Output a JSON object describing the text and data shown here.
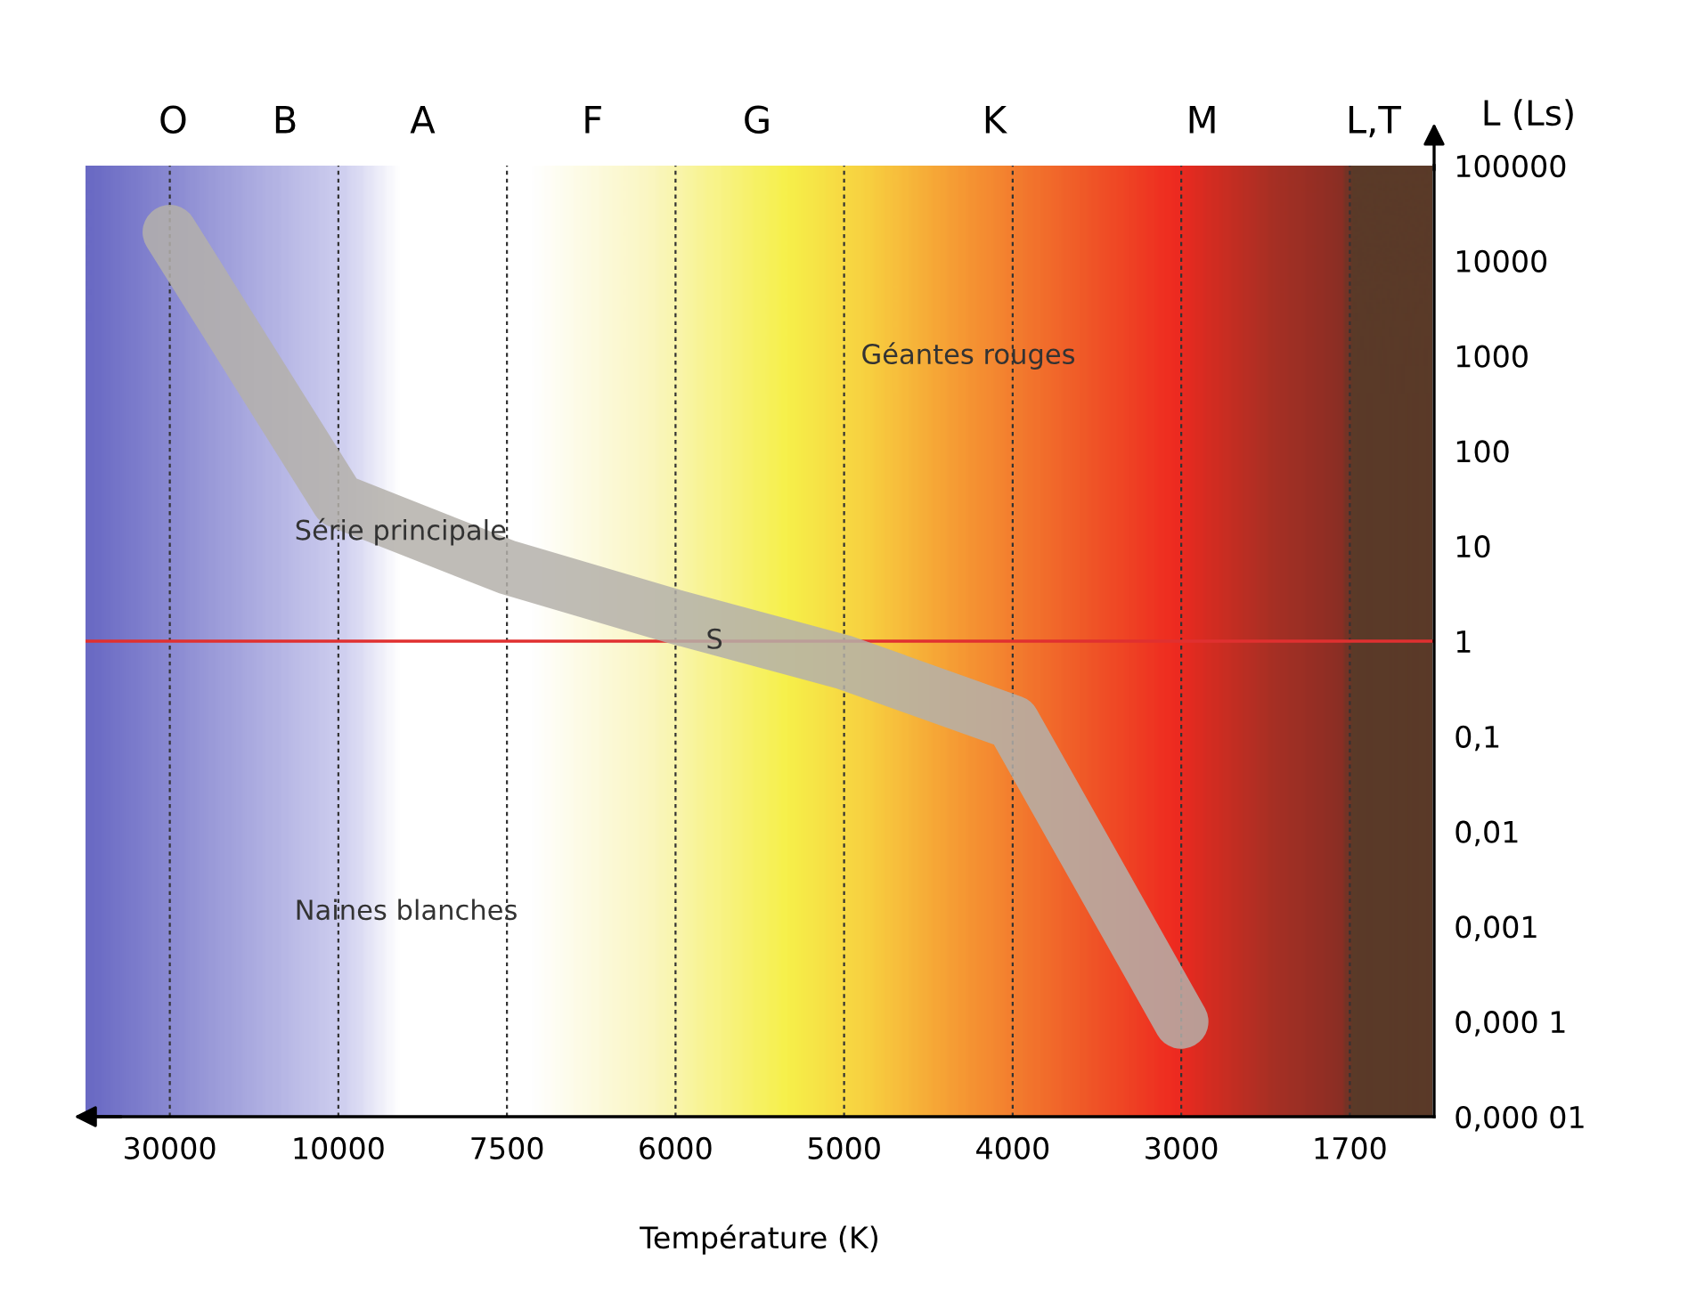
{
  "chart_data": {
    "type": "line",
    "xlabel": "Température (K)",
    "ylabel": "L (Ls)",
    "categories": [
      "30000",
      "10000",
      "7500",
      "6000",
      "5000",
      "4000",
      "3000",
      "1700"
    ],
    "log": "y",
    "ylim": [
      1e-05,
      100000
    ],
    "yticks": [
      {
        "value": 100000,
        "label": "100000"
      },
      {
        "value": 10000,
        "label": "10000"
      },
      {
        "value": 1000,
        "label": "1000"
      },
      {
        "value": 100,
        "label": "100"
      },
      {
        "value": 10,
        "label": "10"
      },
      {
        "value": 1,
        "label": "1"
      },
      {
        "value": 0.1,
        "label": "0,1"
      },
      {
        "value": 0.01,
        "label": "0,01"
      },
      {
        "value": 0.001,
        "label": "0,001"
      },
      {
        "value": 0.0001,
        "label": "0,000 1"
      },
      {
        "value": 1e-05,
        "label": "0,000 01"
      }
    ],
    "grid": "x",
    "series": [
      {
        "color": "#b4b0aa",
        "values": [
          20000,
          30,
          6,
          1.8,
          0.6,
          0.14,
          0.0001,
          null
        ]
      }
    ],
    "ref_lines": [
      {
        "axis": "y",
        "value": 1,
        "color": "#e03030"
      }
    ],
    "annotations": [
      "O",
      "B",
      "A",
      "F",
      "G",
      "K",
      "M",
      "L,T",
      "S",
      "Série principale",
      "Géantes rouges",
      "Naines blanches"
    ]
  }
}
